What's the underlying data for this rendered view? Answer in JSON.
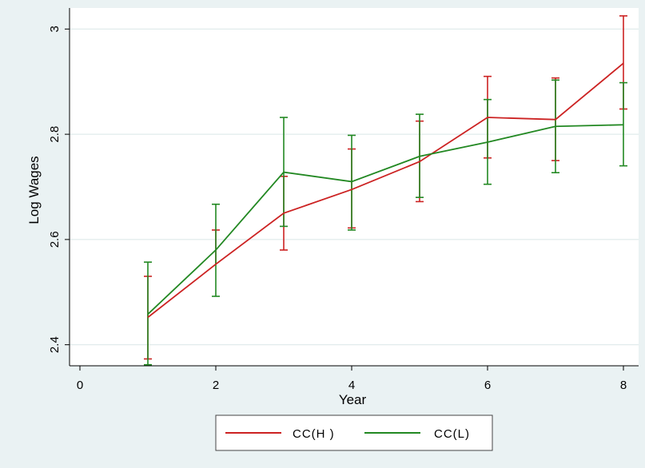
{
  "chart_data": {
    "type": "line",
    "title": "",
    "xlabel": "Year",
    "ylabel": "Log Wages",
    "xlim": [
      0,
      8
    ],
    "ylim": [
      2.36,
      3.04
    ],
    "xticks": [
      0,
      2,
      4,
      6,
      8
    ],
    "yticks": [
      2.4,
      2.6,
      2.8,
      3
    ],
    "ytick_labels": [
      "2.4",
      "2.6",
      "2.8",
      "3"
    ],
    "grid": true,
    "legend_position": "bottom",
    "x": [
      1,
      2,
      3,
      4,
      5,
      6,
      7,
      8
    ],
    "series": [
      {
        "name": "CC(H )",
        "color": "#cc2222",
        "values": [
          2.452,
          2.553,
          2.65,
          2.695,
          2.748,
          2.832,
          2.828,
          2.935
        ],
        "lower": [
          2.373,
          null,
          2.58,
          2.622,
          2.672,
          2.755,
          2.75,
          2.848
        ],
        "upper": [
          2.53,
          2.618,
          2.72,
          2.772,
          2.825,
          2.91,
          2.907,
          3.025
        ]
      },
      {
        "name": "CC(L)",
        "color": "#228822",
        "values": [
          2.458,
          2.58,
          2.728,
          2.71,
          2.758,
          2.785,
          2.815,
          2.818
        ],
        "lower": [
          2.362,
          2.492,
          2.625,
          2.618,
          2.68,
          2.705,
          2.727,
          2.74
        ],
        "upper": [
          2.557,
          2.667,
          2.832,
          2.798,
          2.838,
          2.866,
          2.903,
          2.898
        ]
      }
    ]
  }
}
